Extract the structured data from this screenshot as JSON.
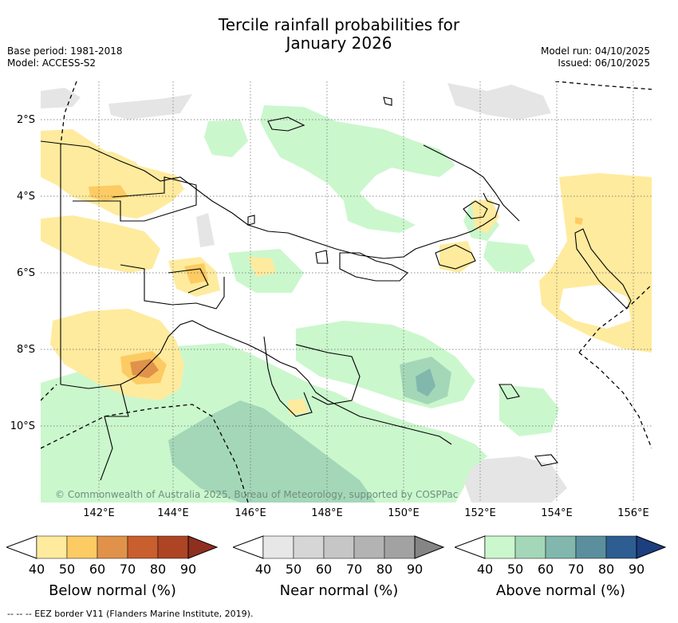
{
  "title_line1": "Tercile rainfall probabilities for",
  "title_line2": "January 2026",
  "base_period": "Base period: 1981-2018",
  "model": "Model: ACCESS-S2",
  "model_run": "Model run: 04/10/2025",
  "issued": "Issued: 06/10/2025",
  "copyright": "© Commonwealth of Australia 2025, Bureau of Meteorology, supported by COSPPac",
  "lat_labels": [
    "2°S",
    "4°S",
    "6°S",
    "8°S",
    "10°S"
  ],
  "lon_labels": [
    "142°E",
    "144°E",
    "146°E",
    "148°E",
    "150°E",
    "152°E",
    "154°E",
    "156°E"
  ],
  "legends": [
    {
      "title": "Below normal (%)",
      "ticks": [
        "40",
        "50",
        "60",
        "70",
        "80",
        "90"
      ],
      "colors": [
        "#ffffff",
        "#ffeb9e",
        "#fdcb63",
        "#e0924a",
        "#c95e2f",
        "#ad4525",
        "#8f2f1f"
      ]
    },
    {
      "title": "Near normal (%)",
      "ticks": [
        "40",
        "50",
        "60",
        "70",
        "80",
        "90"
      ],
      "colors": [
        "#ffffff",
        "#e7e7e7",
        "#d6d6d6",
        "#c6c6c6",
        "#b3b3b3",
        "#a2a2a2",
        "#858585"
      ]
    },
    {
      "title": "Above normal (%)",
      "ticks": [
        "40",
        "50",
        "60",
        "70",
        "80",
        "90"
      ],
      "colors": [
        "#ffffff",
        "#cbf7cd",
        "#a4d7b8",
        "#81b7ad",
        "#5b8f9e",
        "#2e5d91",
        "#1b3f7f"
      ]
    }
  ],
  "eez_note": "--  --  -- EEZ border V11 (Flanders Marine Institute, 2019)."
}
